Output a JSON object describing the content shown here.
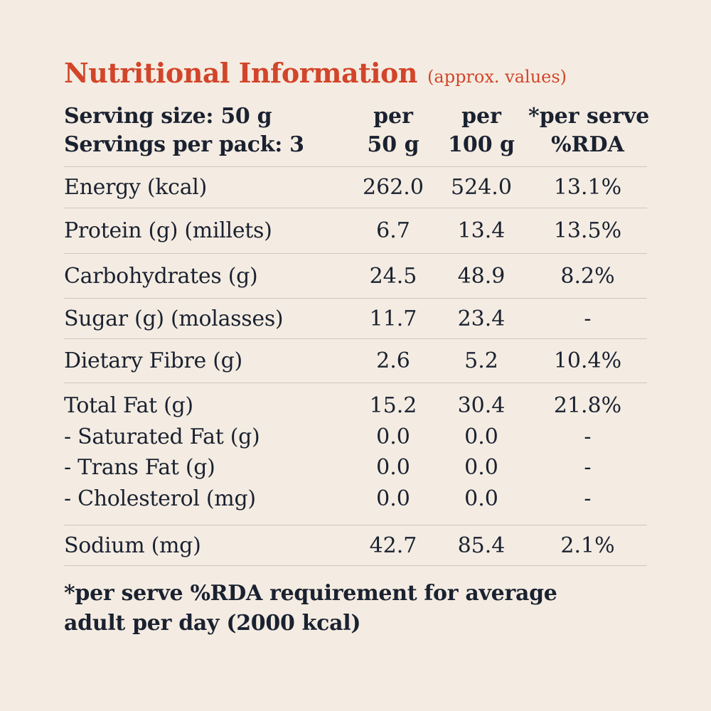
{
  "title": "Nutritional Information",
  "subtitle": "(approx. values)",
  "header": {
    "serving_size": "Serving size: 50 g",
    "servings_per_pack": "Servings per pack: 3",
    "col1_line1": "per",
    "col1_line2": "50 g",
    "col2_line1": "per",
    "col2_line2": "100 g",
    "col3_line1": "*per serve",
    "col3_line2": "%RDA"
  },
  "rows": [
    {
      "label": "Energy (kcal)",
      "per50": "262.0",
      "per100": "524.0",
      "rda": "13.1%"
    },
    {
      "label": "Protein (g) (millets)",
      "per50": "6.7",
      "per100": "13.4",
      "rda": "13.5%"
    },
    {
      "label": "Carbohydrates (g)",
      "per50": "24.5",
      "per100": "48.9",
      "rda": "8.2%"
    },
    {
      "label": "Sugar (g) (molasses)",
      "per50": "11.7",
      "per100": "23.4",
      "rda": "-"
    },
    {
      "label": "Dietary Fibre (g)",
      "per50": "2.6",
      "per100": "5.2",
      "rda": "10.4%"
    }
  ],
  "fat_group": [
    {
      "label": "Total Fat (g)",
      "per50": "15.2",
      "per100": "30.4",
      "rda": "21.8%"
    },
    {
      "label": "- Saturated Fat (g)",
      "per50": "0.0",
      "per100": "0.0",
      "rda": "-"
    },
    {
      "label": "- Trans Fat (g)",
      "per50": "0.0",
      "per100": "0.0",
      "rda": "-"
    },
    {
      "label": "- Cholesterol (mg)",
      "per50": "0.0",
      "per100": "0.0",
      "rda": "-"
    }
  ],
  "sodium": {
    "label": "Sodium (mg)",
    "per50": "42.7",
    "per100": "85.4",
    "rda": "2.1%"
  },
  "footnote_line1": "*per serve %RDA requirement for average",
  "footnote_line2": "adult per day (2000 kcal)",
  "colors": {
    "background": "#f4ece2",
    "title": "#d2452a",
    "text": "#1a2130",
    "rule": "#cfc6ba"
  }
}
